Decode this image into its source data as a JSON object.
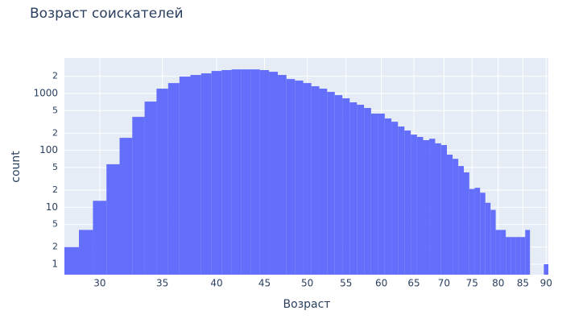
{
  "chart_data": {
    "type": "histogram",
    "title": "Возраст соискателей",
    "x_label": "Возраст",
    "y_label": "count",
    "color": "#636efa",
    "x_log": true,
    "y_log": true,
    "grid": true,
    "bins": [
      27.5,
      28.5,
      29.5,
      30.5,
      31.5,
      32.5,
      33.5,
      34.5,
      35.5,
      36.5,
      37.5,
      38.5,
      39.5,
      40.5,
      41.5,
      42.5,
      43.5,
      44.5,
      45.5,
      46.5,
      47.5,
      48.5,
      49.5,
      50.5,
      51.5,
      52.5,
      53.5,
      54.5,
      55.5,
      56.5,
      57.5,
      58.5,
      59.5,
      60.5,
      61.5,
      62.5,
      63.5,
      64.5,
      65.5,
      66.5,
      67.5,
      68.5,
      69.5,
      70.5,
      71.5,
      72.5,
      73.5,
      74.5,
      75.5,
      76.5,
      77.5,
      78.5,
      79.5,
      80.5,
      81.5,
      82.5,
      83.5,
      84.5,
      85.5,
      86.5,
      87.5,
      88.5,
      89.5,
      90.5
    ],
    "values": [
      2,
      4,
      13,
      57,
      166,
      387,
      719,
      1212,
      1520,
      1976,
      2110,
      2250,
      2480,
      2570,
      2640,
      2640,
      2640,
      2570,
      2400,
      2110,
      1790,
      1680,
      1520,
      1336,
      1212,
      1064,
      933,
      820,
      697,
      632,
      555,
      442,
      442,
      363,
      318,
      262,
      223,
      189,
      172,
      151,
      160,
      133,
      124,
      84,
      71,
      53,
      41,
      21,
      22,
      18,
      12,
      9,
      4,
      4,
      3,
      3,
      3,
      3,
      4,
      0,
      0,
      0,
      1
    ],
    "xlim": [
      27.5,
      90.5
    ],
    "xticks": [
      30,
      35,
      40,
      45,
      50,
      55,
      60,
      65,
      70,
      75,
      80,
      85,
      90
    ],
    "ylim": [
      0.655,
      4190
    ],
    "yticks": [
      1,
      {
        "value": 2,
        "label": "2"
      },
      {
        "value": 5,
        "label": "5"
      },
      10,
      {
        "value": 20,
        "label": "2"
      },
      {
        "value": 50,
        "label": "5"
      },
      100,
      {
        "value": 200,
        "label": "2"
      },
      {
        "value": 500,
        "label": "5"
      },
      1000,
      {
        "value": 2000,
        "label": "2"
      }
    ]
  }
}
